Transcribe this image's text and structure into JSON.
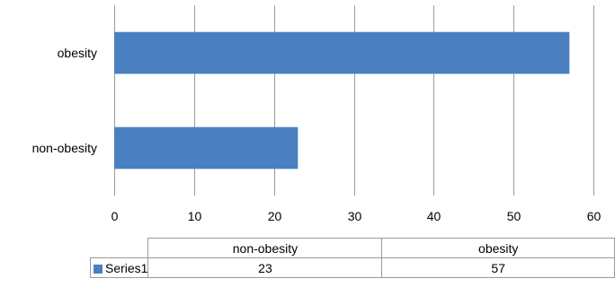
{
  "chart_data": {
    "type": "bar",
    "orientation": "horizontal",
    "categories": [
      "non-obesity",
      "obesity"
    ],
    "series": [
      {
        "name": "Series1",
        "values": [
          23,
          57
        ],
        "color": "#4a7fc1"
      }
    ],
    "xlim": [
      0,
      60
    ],
    "x_ticks": [
      0,
      10,
      20,
      30,
      40,
      50,
      60
    ],
    "grid": "vertical",
    "data_table": true
  }
}
